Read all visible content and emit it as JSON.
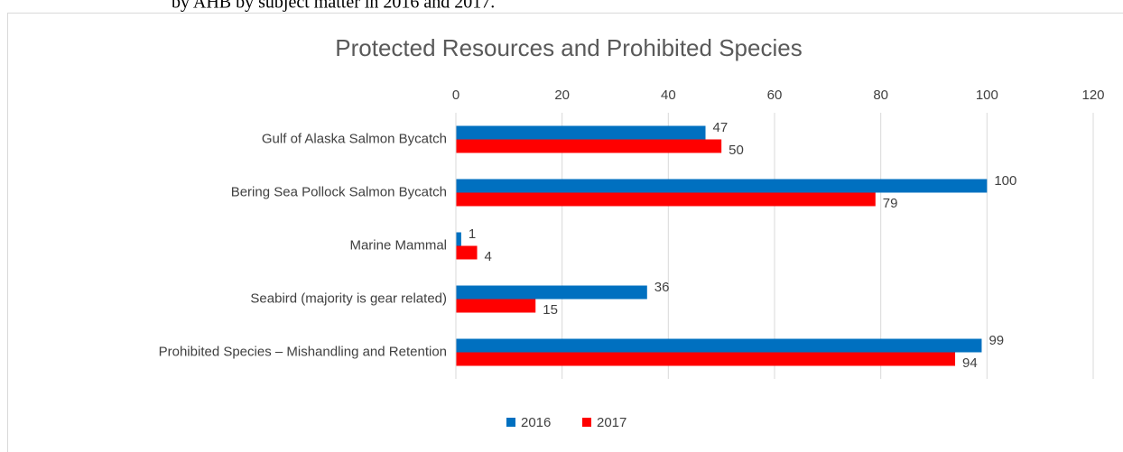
{
  "caption": "by AHB by subject matter in 2016 and 2017.",
  "chart_data": {
    "type": "hbar",
    "title": "Protected Resources and Prohibited Species",
    "categories": [
      "Gulf of Alaska Salmon Bycatch",
      "Bering Sea Pollock Salmon Bycatch",
      "Marine Mammal",
      "Seabird (majority is gear related)",
      "Prohibited Species – Mishandling and Retention"
    ],
    "series": [
      {
        "name": "2016",
        "color": "#0070c0",
        "values": [
          47,
          100,
          1,
          36,
          99
        ]
      },
      {
        "name": "2017",
        "color": "#ff0000",
        "values": [
          50,
          79,
          4,
          15,
          94
        ]
      }
    ],
    "xlim": [
      0,
      120
    ],
    "xticks": [
      0,
      20,
      40,
      60,
      80,
      100,
      120
    ],
    "grid": true,
    "legend": "bottom"
  }
}
